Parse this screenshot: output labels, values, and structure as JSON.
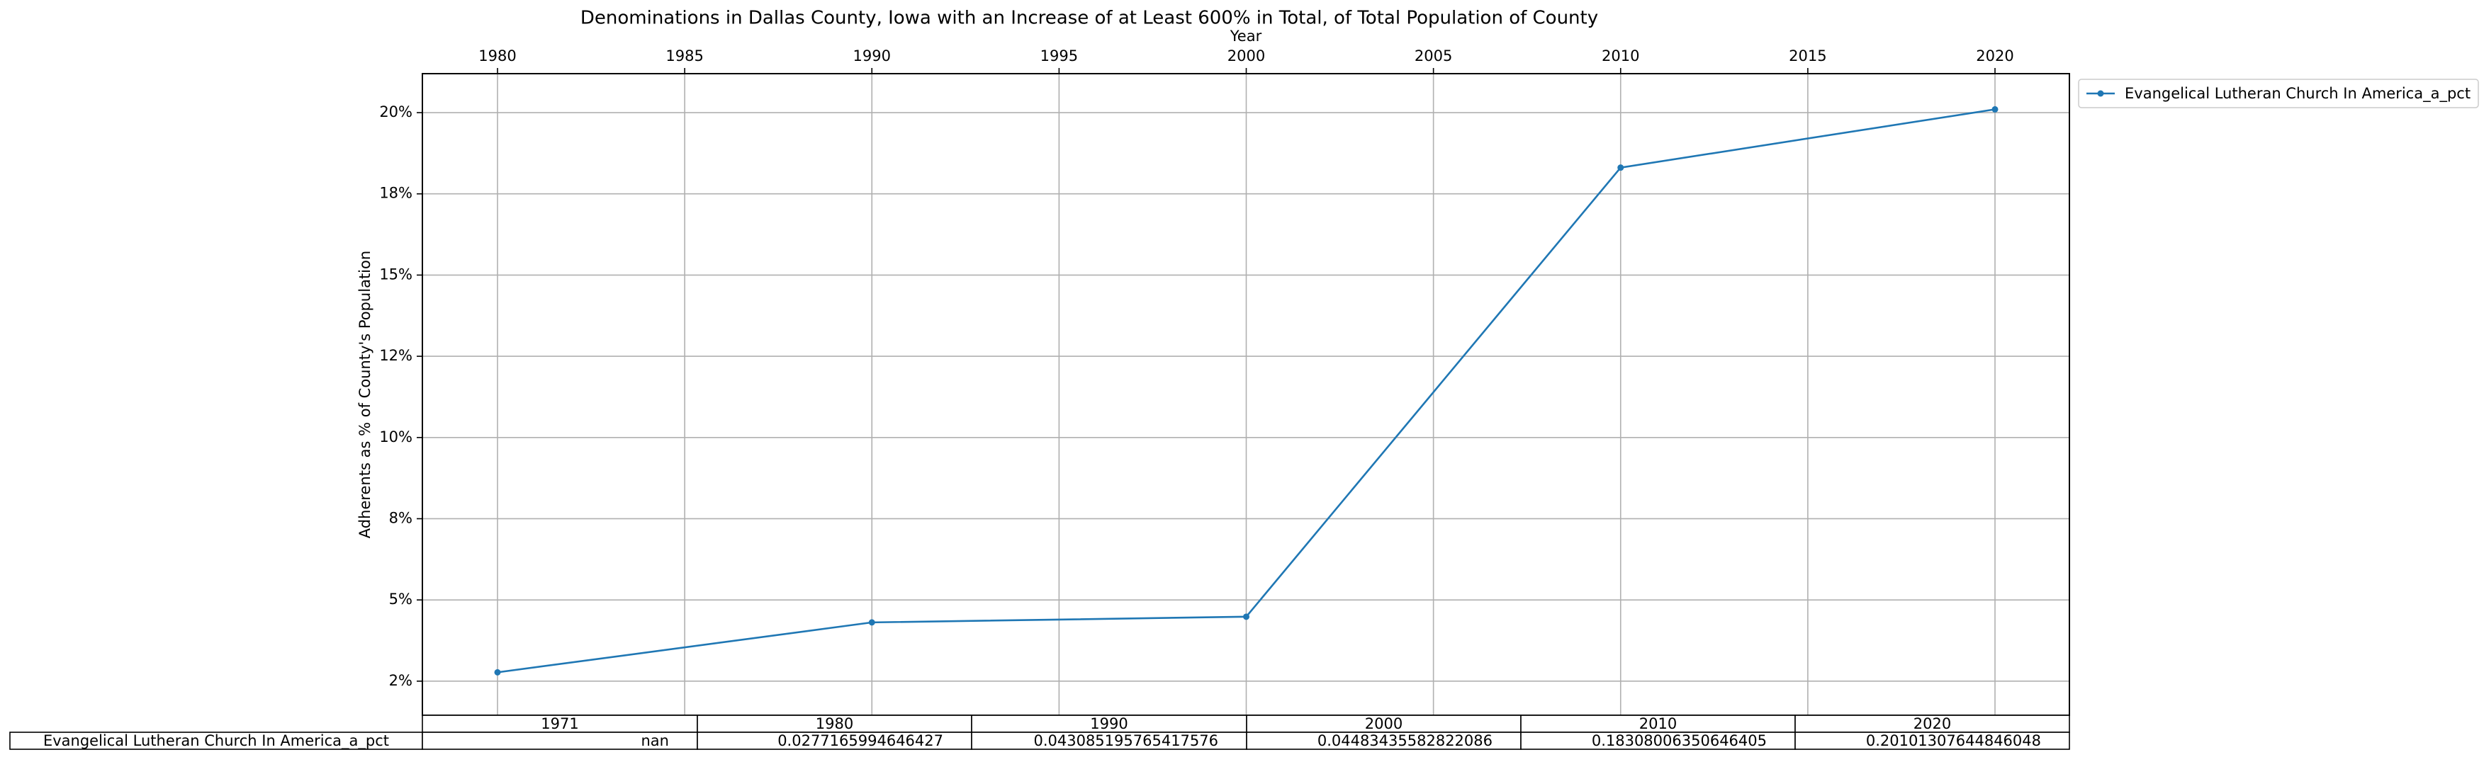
{
  "chart_data": {
    "type": "line",
    "title": "Denominations in Dallas County, Iowa with an Increase of at Least 600% in Total, of Total Population of County",
    "xlabel": "Year",
    "ylabel": "Adherents as % of County's Population",
    "xlim": [
      1976,
      2020
    ],
    "ylim": [
      0.0145,
      0.212
    ],
    "x_ticks": [
      1980,
      1985,
      1990,
      1995,
      2000,
      2005,
      2010,
      2015,
      2020
    ],
    "y_ticks": [
      {
        "value": 0.025,
        "label": "2%"
      },
      {
        "value": 0.05,
        "label": "5%"
      },
      {
        "value": 0.075,
        "label": "8%"
      },
      {
        "value": 0.1,
        "label": "10%"
      },
      {
        "value": 0.125,
        "label": "12%"
      },
      {
        "value": 0.15,
        "label": "15%"
      },
      {
        "value": 0.175,
        "label": "18%"
      },
      {
        "value": 0.2,
        "label": "20%"
      }
    ],
    "grid": true,
    "x_axis_position": "top",
    "legend_position": "outside-top-right",
    "series": [
      {
        "name": "Evangelical Lutheran Church In America_a_pct",
        "color": "#1f77b4",
        "marker": "point",
        "x": [
          1980,
          1990,
          2000,
          2010,
          2020
        ],
        "y": [
          0.0277165994646427,
          0.043085195765417576,
          0.04483435582822086,
          0.18308006350646405,
          0.20101307644846048
        ]
      }
    ],
    "table": {
      "columns": [
        "1971",
        "1980",
        "1990",
        "2000",
        "2010",
        "2020"
      ],
      "rows": [
        {
          "label": "Evangelical Lutheran Church In America_a_pct",
          "cells": [
            "nan",
            "0.0277165994646427",
            "0.043085195765417576",
            "0.04483435582822086",
            "0.18308006350646405",
            "0.20101307644846048"
          ]
        }
      ]
    }
  }
}
